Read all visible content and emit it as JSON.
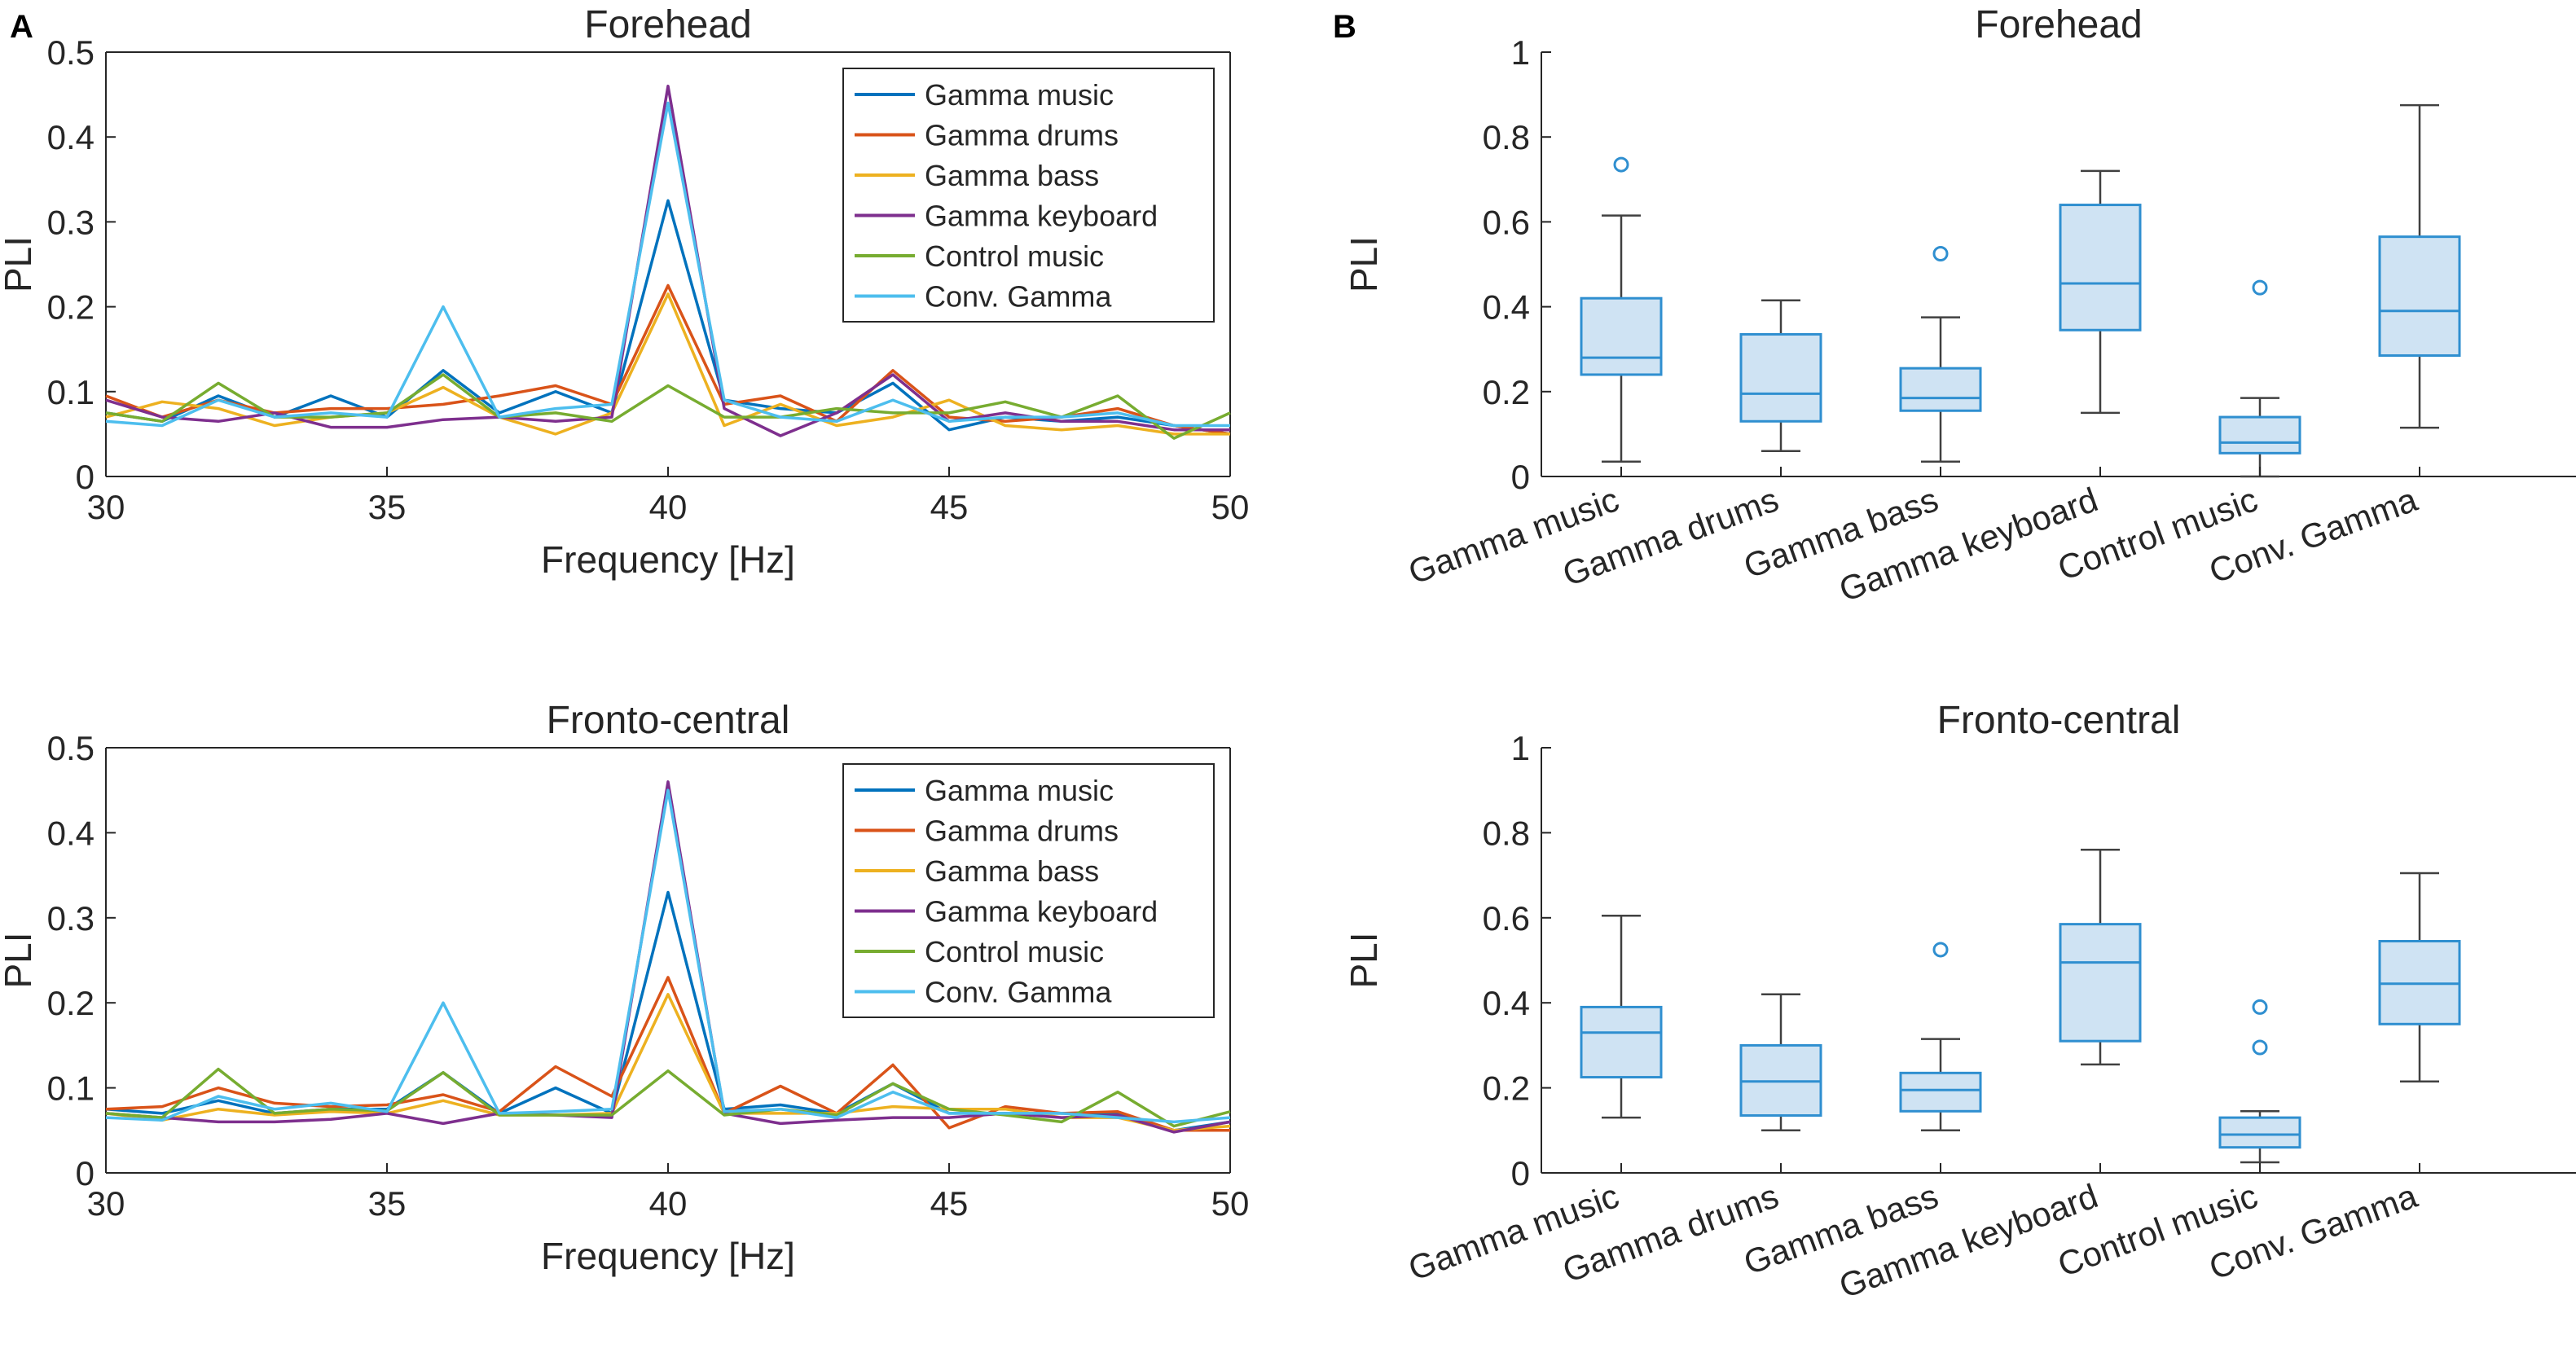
{
  "panel_labels": [
    "A",
    "B"
  ],
  "colors": {
    "Gamma music": "#0072BD",
    "Gamma drums": "#D95319",
    "Gamma bass": "#EDB120",
    "Gamma keyboard": "#7E2F8E",
    "Control music": "#77AC30",
    "Conv. Gamma": "#4DBEEE",
    "box_edge": "#2f8fd0",
    "box_fill": "#cfe3f3",
    "whisker": "#404040",
    "axis": "#262626"
  },
  "chart_data": [
    {
      "id": "A-forehead",
      "type": "line",
      "title": "Forehead",
      "xlabel": "Frequency [Hz]",
      "ylabel": "PLI",
      "xlim": [
        30,
        50
      ],
      "ylim": [
        0,
        0.5
      ],
      "xticks": [
        30,
        35,
        40,
        45,
        50
      ],
      "yticks": [
        0,
        0.1,
        0.2,
        0.3,
        0.4,
        0.5
      ],
      "ytick_labels": [
        "0",
        "0.1",
        "0.2",
        "0.3",
        "0.4",
        "0.5"
      ],
      "legend": "top-right",
      "x": [
        30,
        31,
        32,
        33,
        34,
        35,
        36,
        37,
        38,
        39,
        40,
        41,
        42,
        43,
        44,
        45,
        46,
        47,
        48,
        49,
        50
      ],
      "series": [
        {
          "name": "Gamma music",
          "values": [
            0.075,
            0.065,
            0.095,
            0.07,
            0.095,
            0.07,
            0.125,
            0.075,
            0.1,
            0.075,
            0.325,
            0.09,
            0.08,
            0.075,
            0.11,
            0.055,
            0.07,
            0.065,
            0.07,
            0.06,
            0.05
          ]
        },
        {
          "name": "Gamma drums",
          "values": [
            0.095,
            0.07,
            0.09,
            0.075,
            0.08,
            0.08,
            0.085,
            0.095,
            0.107,
            0.085,
            0.225,
            0.085,
            0.095,
            0.065,
            0.125,
            0.07,
            0.065,
            0.07,
            0.08,
            0.06,
            0.05
          ]
        },
        {
          "name": "Gamma bass",
          "values": [
            0.07,
            0.088,
            0.08,
            0.06,
            0.07,
            0.075,
            0.105,
            0.07,
            0.05,
            0.075,
            0.215,
            0.06,
            0.085,
            0.06,
            0.07,
            0.09,
            0.06,
            0.055,
            0.06,
            0.05,
            0.05
          ]
        },
        {
          "name": "Gamma keyboard",
          "values": [
            0.09,
            0.07,
            0.065,
            0.075,
            0.058,
            0.058,
            0.067,
            0.07,
            0.065,
            0.07,
            0.46,
            0.08,
            0.048,
            0.075,
            0.12,
            0.065,
            0.075,
            0.065,
            0.065,
            0.055,
            0.055
          ]
        },
        {
          "name": "Control music",
          "values": [
            0.075,
            0.065,
            0.11,
            0.07,
            0.07,
            0.075,
            0.12,
            0.07,
            0.075,
            0.065,
            0.107,
            0.07,
            0.07,
            0.08,
            0.075,
            0.075,
            0.088,
            0.07,
            0.095,
            0.045,
            0.075
          ]
        },
        {
          "name": "Conv. Gamma",
          "values": [
            0.065,
            0.06,
            0.09,
            0.07,
            0.075,
            0.07,
            0.2,
            0.07,
            0.08,
            0.085,
            0.44,
            0.09,
            0.07,
            0.065,
            0.09,
            0.065,
            0.07,
            0.07,
            0.075,
            0.06,
            0.06
          ]
        }
      ]
    },
    {
      "id": "A-fronto-central",
      "type": "line",
      "title": "Fronto-central",
      "xlabel": "Frequency [Hz]",
      "ylabel": "PLI",
      "xlim": [
        30,
        50
      ],
      "ylim": [
        0,
        0.5
      ],
      "xticks": [
        30,
        35,
        40,
        45,
        50
      ],
      "yticks": [
        0,
        0.1,
        0.2,
        0.3,
        0.4,
        0.5
      ],
      "ytick_labels": [
        "0",
        "0.1",
        "0.2",
        "0.3",
        "0.4",
        "0.5"
      ],
      "legend": "top-right",
      "x": [
        30,
        31,
        32,
        33,
        34,
        35,
        36,
        37,
        38,
        39,
        40,
        41,
        42,
        43,
        44,
        45,
        46,
        47,
        48,
        49,
        50
      ],
      "series": [
        {
          "name": "Gamma music",
          "values": [
            0.075,
            0.07,
            0.085,
            0.07,
            0.075,
            0.075,
            0.118,
            0.07,
            0.1,
            0.07,
            0.33,
            0.075,
            0.08,
            0.07,
            0.105,
            0.07,
            0.07,
            0.07,
            0.07,
            0.05,
            0.06
          ]
        },
        {
          "name": "Gamma drums",
          "values": [
            0.075,
            0.078,
            0.1,
            0.082,
            0.078,
            0.08,
            0.092,
            0.072,
            0.125,
            0.09,
            0.23,
            0.07,
            0.102,
            0.07,
            0.127,
            0.053,
            0.078,
            0.07,
            0.072,
            0.05,
            0.05
          ]
        },
        {
          "name": "Gamma bass",
          "values": [
            0.07,
            0.062,
            0.075,
            0.068,
            0.072,
            0.07,
            0.085,
            0.068,
            0.068,
            0.07,
            0.21,
            0.07,
            0.07,
            0.07,
            0.078,
            0.075,
            0.075,
            0.065,
            0.065,
            0.05,
            0.055
          ]
        },
        {
          "name": "Gamma keyboard",
          "values": [
            0.07,
            0.065,
            0.06,
            0.06,
            0.063,
            0.07,
            0.058,
            0.07,
            0.068,
            0.065,
            0.46,
            0.07,
            0.058,
            0.062,
            0.065,
            0.065,
            0.07,
            0.065,
            0.068,
            0.048,
            0.06
          ]
        },
        {
          "name": "Control music",
          "values": [
            0.07,
            0.065,
            0.122,
            0.07,
            0.075,
            0.073,
            0.118,
            0.068,
            0.068,
            0.068,
            0.12,
            0.068,
            0.075,
            0.068,
            0.105,
            0.075,
            0.068,
            0.06,
            0.095,
            0.055,
            0.072
          ]
        },
        {
          "name": "Conv. Gamma",
          "values": [
            0.065,
            0.062,
            0.09,
            0.075,
            0.082,
            0.072,
            0.2,
            0.07,
            0.072,
            0.075,
            0.45,
            0.072,
            0.075,
            0.065,
            0.095,
            0.07,
            0.07,
            0.07,
            0.065,
            0.06,
            0.065
          ]
        }
      ]
    },
    {
      "id": "B-forehead",
      "type": "box",
      "title": "Forehead",
      "ylabel": "PLI",
      "ylim": [
        0,
        1
      ],
      "yticks": [
        0,
        0.2,
        0.4,
        0.6,
        0.8,
        1
      ],
      "ytick_labels": [
        "0",
        "0.2",
        "0.4",
        "0.6",
        "0.8",
        "1"
      ],
      "categories": [
        "Gamma music",
        "Gamma drums",
        "Gamma bass",
        "Gamma keyboard",
        "Control music",
        "Conv. Gamma"
      ],
      "boxes": [
        {
          "min": 0.035,
          "q1": 0.24,
          "median": 0.28,
          "q3": 0.42,
          "max": 0.615,
          "outliers": [
            0.735
          ]
        },
        {
          "min": 0.06,
          "q1": 0.13,
          "median": 0.195,
          "q3": 0.335,
          "max": 0.415,
          "outliers": []
        },
        {
          "min": 0.035,
          "q1": 0.155,
          "median": 0.185,
          "q3": 0.255,
          "max": 0.375,
          "outliers": [
            0.525
          ]
        },
        {
          "min": 0.15,
          "q1": 0.345,
          "median": 0.455,
          "q3": 0.64,
          "max": 0.72,
          "outliers": []
        },
        {
          "min": 0.0,
          "q1": 0.055,
          "median": 0.08,
          "q3": 0.14,
          "max": 0.185,
          "outliers": [
            0.445
          ]
        },
        {
          "min": 0.115,
          "q1": 0.285,
          "median": 0.39,
          "q3": 0.565,
          "max": 0.875,
          "outliers": []
        }
      ]
    },
    {
      "id": "B-fronto-central",
      "type": "box",
      "title": "Fronto-central",
      "ylabel": "PLI",
      "ylim": [
        0,
        1
      ],
      "yticks": [
        0,
        0.2,
        0.4,
        0.6,
        0.8,
        1
      ],
      "ytick_labels": [
        "0",
        "0.2",
        "0.4",
        "0.6",
        "0.8",
        "1"
      ],
      "categories": [
        "Gamma music",
        "Gamma drums",
        "Gamma bass",
        "Gamma keyboard",
        "Control music",
        "Conv. Gamma"
      ],
      "boxes": [
        {
          "min": 0.13,
          "q1": 0.225,
          "median": 0.33,
          "q3": 0.39,
          "max": 0.605,
          "outliers": []
        },
        {
          "min": 0.1,
          "q1": 0.135,
          "median": 0.215,
          "q3": 0.3,
          "max": 0.42,
          "outliers": []
        },
        {
          "min": 0.1,
          "q1": 0.145,
          "median": 0.195,
          "q3": 0.235,
          "max": 0.315,
          "outliers": [
            0.525
          ]
        },
        {
          "min": 0.255,
          "q1": 0.31,
          "median": 0.495,
          "q3": 0.585,
          "max": 0.76,
          "outliers": []
        },
        {
          "min": 0.025,
          "q1": 0.06,
          "median": 0.09,
          "q3": 0.13,
          "max": 0.145,
          "outliers": [
            0.295,
            0.39
          ]
        },
        {
          "min": 0.215,
          "q1": 0.35,
          "median": 0.445,
          "q3": 0.545,
          "max": 0.705,
          "outliers": []
        }
      ]
    }
  ]
}
